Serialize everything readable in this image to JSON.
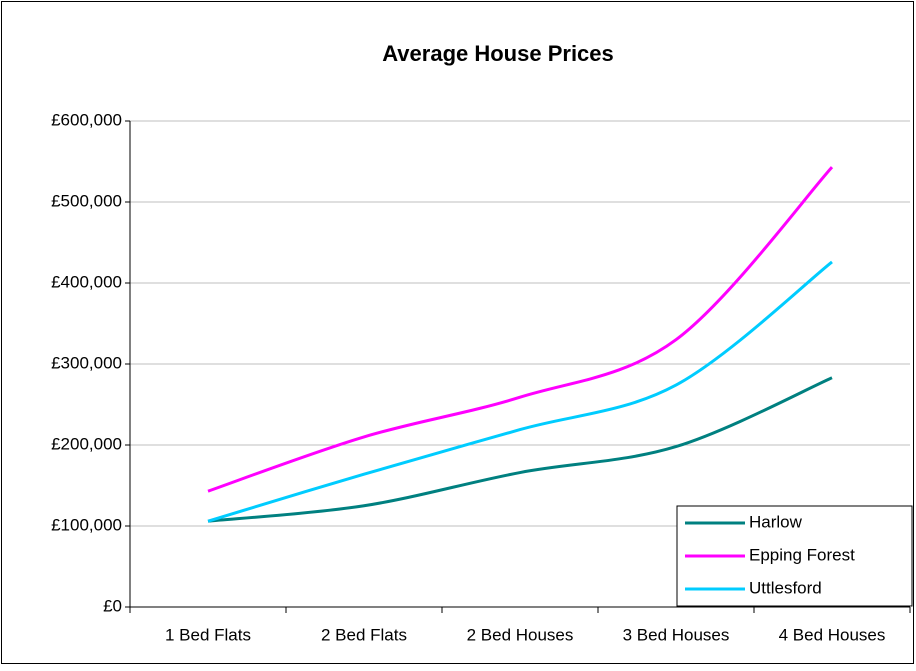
{
  "chart_data": {
    "type": "line",
    "title": "Average House Prices",
    "categories": [
      "1 Bed Flats",
      "2 Bed Flats",
      "2 Bed Houses",
      "3 Bed Houses",
      "4 Bed Houses"
    ],
    "series": [
      {
        "name": "Harlow",
        "color": "#008080",
        "values": [
          106000,
          125000,
          166000,
          198000,
          283000
        ]
      },
      {
        "name": "Epping Forest",
        "color": "#ff00ff",
        "values": [
          143000,
          210000,
          259000,
          330000,
          543000
        ]
      },
      {
        "name": "Uttlesford",
        "color": "#00ccff",
        "values": [
          106000,
          164000,
          219000,
          274000,
          426000
        ]
      }
    ],
    "ylim": [
      0,
      600000
    ],
    "yticks": [
      {
        "value": 0,
        "label": "£0"
      },
      {
        "value": 100000,
        "label": "£100,000"
      },
      {
        "value": 200000,
        "label": "£200,000"
      },
      {
        "value": 300000,
        "label": "£300,000"
      },
      {
        "value": 400000,
        "label": "£400,000"
      },
      {
        "value": 500000,
        "label": "£500,000"
      },
      {
        "value": 600000,
        "label": "£600,000"
      }
    ],
    "grid": true,
    "legend": "lower right",
    "smooth": true
  }
}
